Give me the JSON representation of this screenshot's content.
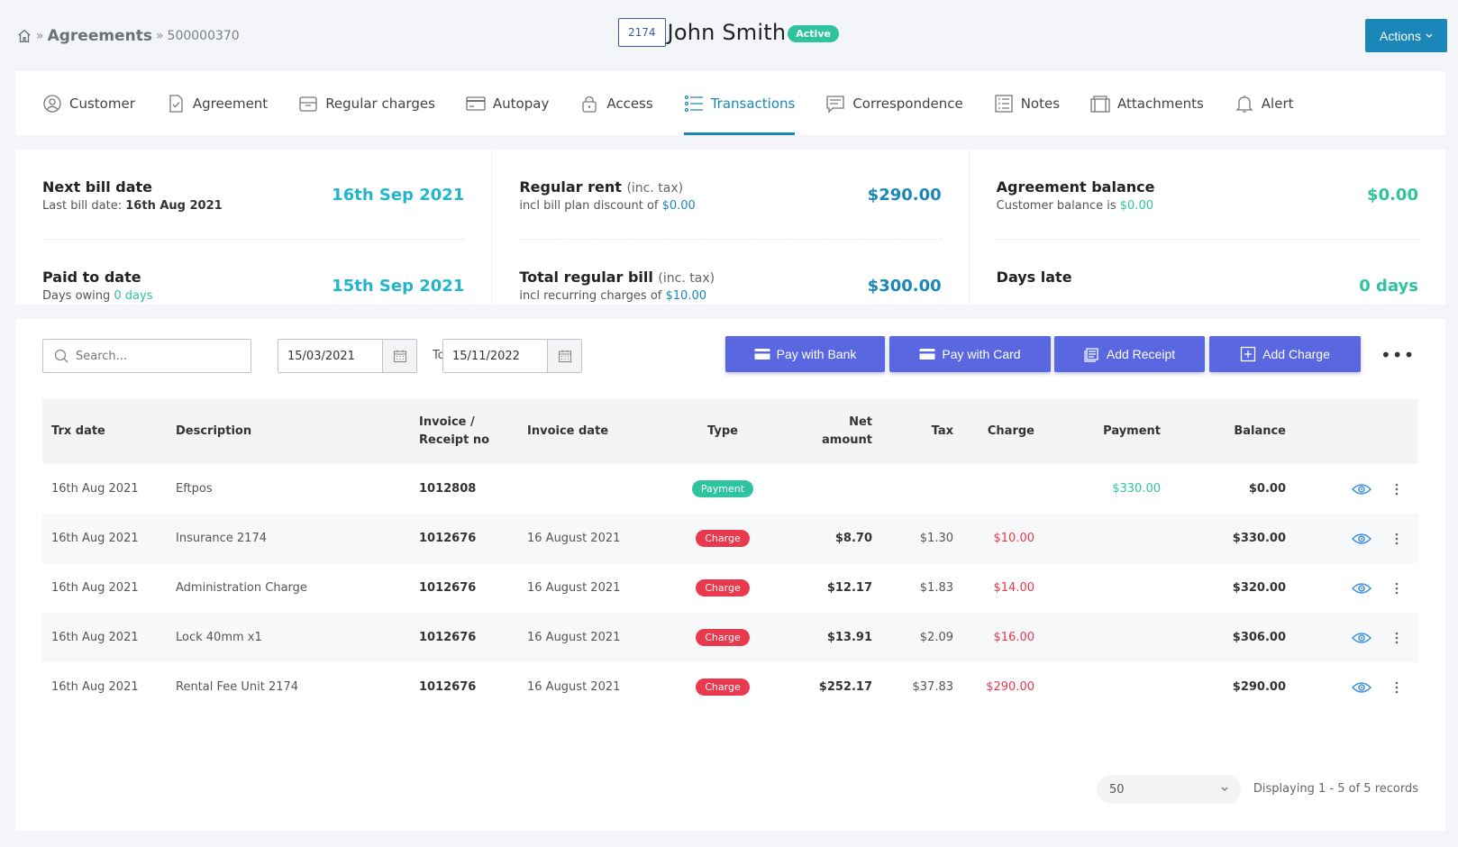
{
  "breadcrumb": {
    "section": "Agreements",
    "id": "500000370"
  },
  "customer": {
    "unit": "2174",
    "name": "John Smith",
    "status": "Active"
  },
  "actions_label": "Actions",
  "tabs": [
    {
      "label": "Customer",
      "icon": "user-circle-icon"
    },
    {
      "label": "Agreement",
      "icon": "document-check-icon"
    },
    {
      "label": "Regular charges",
      "icon": "inbox-icon"
    },
    {
      "label": "Autopay",
      "icon": "card-icon"
    },
    {
      "label": "Access",
      "icon": "lock-icon"
    },
    {
      "label": "Transactions",
      "icon": "list-icon",
      "active": true
    },
    {
      "label": "Correspondence",
      "icon": "message-icon"
    },
    {
      "label": "Notes",
      "icon": "notes-icon"
    },
    {
      "label": "Attachments",
      "icon": "attachments-icon"
    },
    {
      "label": "Alert",
      "icon": "bell-icon"
    }
  ],
  "summary": {
    "next_bill": {
      "label": "Next bill date",
      "sub_prefix": "Last bill date:",
      "sub_value": "16th Aug 2021",
      "value": "16th Sep 2021"
    },
    "paid_to": {
      "label": "Paid to date",
      "sub_prefix": "Days owing",
      "sub_value": "0 days",
      "value": "15th Sep 2021"
    },
    "regular_rent": {
      "label": "Regular rent",
      "qualifier": "(inc. tax)",
      "sub_prefix": "incl bill plan discount of",
      "sub_value": "$0.00",
      "value": "$290.00"
    },
    "total_bill": {
      "label": "Total regular bill",
      "qualifier": "(inc. tax)",
      "sub_prefix": "incl recurring charges of",
      "sub_value": "$10.00",
      "value": "$300.00"
    },
    "agreement_balance": {
      "label": "Agreement balance",
      "sub_prefix": "Customer balance is",
      "sub_value": "$0.00",
      "value": "$0.00"
    },
    "days_late": {
      "label": "Days late",
      "value": "0 days"
    }
  },
  "filters": {
    "search_placeholder": "Search...",
    "date_from": "15/03/2021",
    "to_label": "To",
    "date_to": "15/11/2022"
  },
  "buttons": {
    "pay_bank": "Pay with Bank",
    "pay_card": "Pay with Card",
    "add_receipt": "Add Receipt",
    "add_charge": "Add Charge",
    "more": "•••"
  },
  "table": {
    "headers": {
      "trx_date": "Trx date",
      "description": "Description",
      "invoice_no_1": "Invoice /",
      "invoice_no_2": "Receipt no",
      "invoice_date": "Invoice date",
      "type": "Type",
      "net_1": "Net",
      "net_2": "amount",
      "tax": "Tax",
      "charge": "Charge",
      "payment": "Payment",
      "balance": "Balance"
    },
    "rows": [
      {
        "trx_date": "16th Aug 2021",
        "description": "Eftpos",
        "invoice_no": "1012808",
        "invoice_date": "",
        "type": "Payment",
        "net": "",
        "tax": "",
        "charge": "",
        "payment": "$330.00",
        "balance": "$0.00"
      },
      {
        "trx_date": "16th Aug 2021",
        "description": "Insurance 2174",
        "invoice_no": "1012676",
        "invoice_date": "16 August 2021",
        "type": "Charge",
        "net": "$8.70",
        "tax": "$1.30",
        "charge": "$10.00",
        "payment": "",
        "balance": "$330.00"
      },
      {
        "trx_date": "16th Aug 2021",
        "description": "Administration Charge",
        "invoice_no": "1012676",
        "invoice_date": "16 August 2021",
        "type": "Charge",
        "net": "$12.17",
        "tax": "$1.83",
        "charge": "$14.00",
        "payment": "",
        "balance": "$320.00"
      },
      {
        "trx_date": "16th Aug 2021",
        "description": "Lock 40mm x1",
        "invoice_no": "1012676",
        "invoice_date": "16 August 2021",
        "type": "Charge",
        "net": "$13.91",
        "tax": "$2.09",
        "charge": "$16.00",
        "payment": "",
        "balance": "$306.00"
      },
      {
        "trx_date": "16th Aug 2021",
        "description": "Rental Fee Unit 2174",
        "invoice_no": "1012676",
        "invoice_date": "16 August 2021",
        "type": "Charge",
        "net": "$252.17",
        "tax": "$37.83",
        "charge": "$290.00",
        "payment": "",
        "balance": "$290.00"
      }
    ]
  },
  "pagination": {
    "page_size": "50",
    "records": "Displaying 1 - 5 of 5 records"
  },
  "colors": {
    "primary": "#1b86b8",
    "button": "#5967e0",
    "green": "#2ec4a0",
    "red": "#e8394e",
    "teal": "#22b5cc"
  }
}
